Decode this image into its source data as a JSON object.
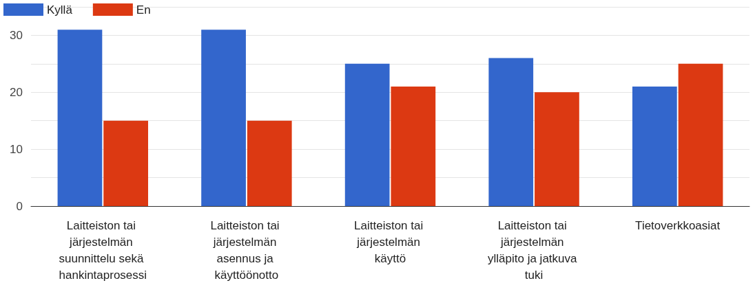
{
  "chart_data": {
    "type": "bar",
    "categories": [
      "Laitteiston tai järjestelmän suunnittelu sekä hankintaprosessi",
      "Laitteiston tai järjestelmän asennus ja käyttöönotto",
      "Laitteiston tai järjestelmän käyttö",
      "Laitteiston tai järjestelmän ylläpito ja jatkuva tuki",
      "Tietoverkkoasiat"
    ],
    "series": [
      {
        "name": "Kyllä",
        "color": "#3366cc",
        "values": [
          31,
          31,
          25,
          26,
          21
        ]
      },
      {
        "name": "En",
        "color": "#dc3912",
        "values": [
          15,
          15,
          21,
          20,
          25
        ]
      }
    ],
    "ylim": [
      0,
      35
    ],
    "yticks": [
      0,
      {
        "value": 5,
        "label": null
      },
      10,
      {
        "value": 15,
        "label": null
      },
      20,
      {
        "value": 25,
        "label": null
      },
      30,
      {
        "value": 35,
        "label": null
      }
    ],
    "grid": true,
    "legend": "top left"
  }
}
